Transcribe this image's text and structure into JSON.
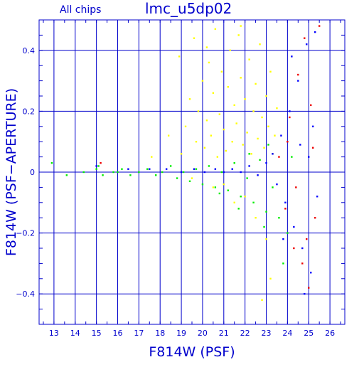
{
  "chart_data": {
    "type": "scatter",
    "title": "lmc_u5dp02",
    "subtitle": "All chips",
    "xlabel": "F814W (PSF)",
    "ylabel": "F814W (PSF−APERTURE)",
    "xlim": [
      12.3,
      26.7
    ],
    "ylim": [
      -0.5,
      0.5
    ],
    "x_ticks": [
      13,
      14,
      15,
      16,
      17,
      18,
      19,
      20,
      21,
      22,
      23,
      24,
      25,
      26
    ],
    "y_ticks": [
      -0.4,
      -0.2,
      0,
      0.2,
      0.4
    ],
    "y_tick_labels": [
      "−0.4",
      "−0.2",
      "0",
      "0.2",
      "0.4"
    ],
    "grid": true,
    "colors": {
      "axis": "#0000cc",
      "text": "#0000cc",
      "background": "#ffffff"
    },
    "series": [
      {
        "color": "#ffff00",
        "description_points": [
          [
            17.6,
            0.05
          ],
          [
            18.4,
            0.12
          ],
          [
            18.9,
            0.38
          ],
          [
            19.0,
            0.06
          ],
          [
            19.2,
            0.15
          ],
          [
            19.4,
            0.24
          ],
          [
            19.6,
            0.44
          ],
          [
            19.7,
            0.1
          ],
          [
            19.8,
            0.2
          ],
          [
            20.0,
            0.3
          ],
          [
            20.1,
            0.08
          ],
          [
            20.2,
            0.17
          ],
          [
            20.3,
            0.36
          ],
          [
            20.4,
            0.12
          ],
          [
            20.5,
            0.26
          ],
          [
            20.6,
            0.47
          ],
          [
            20.7,
            0.05
          ],
          [
            20.8,
            0.19
          ],
          [
            20.9,
            0.33
          ],
          [
            21.0,
            0.14
          ],
          [
            21.1,
            0.07
          ],
          [
            21.2,
            0.28
          ],
          [
            21.3,
            0.4
          ],
          [
            21.4,
            0.1
          ],
          [
            21.5,
            0.22
          ],
          [
            21.6,
            0.16
          ],
          [
            21.7,
            0.45
          ],
          [
            21.8,
            0.31
          ],
          [
            21.9,
            0.09
          ],
          [
            22.0,
            0.24
          ],
          [
            22.1,
            0.13
          ],
          [
            22.2,
            0.37
          ],
          [
            22.3,
            0.06
          ],
          [
            22.4,
            0.2
          ],
          [
            22.5,
            0.29
          ],
          [
            22.6,
            0.11
          ],
          [
            22.7,
            0.42
          ],
          [
            22.8,
            0.18
          ],
          [
            22.9,
            0.08
          ],
          [
            23.0,
            0.25
          ],
          [
            23.1,
            0.15
          ],
          [
            23.2,
            0.33
          ],
          [
            23.3,
            0.06
          ],
          [
            23.4,
            0.12
          ],
          [
            23.5,
            0.21
          ],
          [
            20.5,
            -0.05
          ],
          [
            21.5,
            -0.1
          ],
          [
            22.5,
            -0.15
          ],
          [
            23.0,
            -0.22
          ],
          [
            22.0,
            -0.08
          ],
          [
            23.2,
            -0.35
          ],
          [
            22.8,
            -0.42
          ],
          [
            21.0,
            -0.04
          ],
          [
            19.5,
            -0.02
          ],
          [
            20.2,
            0.41
          ],
          [
            21.8,
            0.48
          ]
        ]
      },
      {
        "color": "#00ee00",
        "description_points": [
          [
            12.9,
            0.03
          ],
          [
            13.6,
            -0.01
          ],
          [
            14.4,
            0.0
          ],
          [
            15.0,
            0.01
          ],
          [
            15.3,
            -0.01
          ],
          [
            15.8,
            0.0
          ],
          [
            16.2,
            0.01
          ],
          [
            16.6,
            -0.01
          ],
          [
            17.0,
            0.0
          ],
          [
            17.4,
            0.01
          ],
          [
            17.8,
            -0.01
          ],
          [
            18.1,
            0.0
          ],
          [
            18.5,
            0.02
          ],
          [
            18.8,
            -0.02
          ],
          [
            19.1,
            0.0
          ],
          [
            19.4,
            -0.03
          ],
          [
            19.7,
            0.01
          ],
          [
            20.0,
            -0.04
          ],
          [
            20.3,
            0.02
          ],
          [
            20.6,
            -0.05
          ],
          [
            20.9,
            0.0
          ],
          [
            21.2,
            -0.06
          ],
          [
            21.5,
            0.03
          ],
          [
            21.8,
            -0.08
          ],
          [
            22.1,
            -0.02
          ],
          [
            22.4,
            -0.1
          ],
          [
            22.7,
            0.04
          ],
          [
            23.0,
            -0.13
          ],
          [
            23.3,
            -0.05
          ],
          [
            23.6,
            -0.15
          ],
          [
            24.0,
            -0.2
          ],
          [
            24.2,
            0.05
          ],
          [
            23.8,
            -0.3
          ],
          [
            22.9,
            -0.18
          ],
          [
            21.7,
            -0.12
          ],
          [
            20.8,
            -0.07
          ],
          [
            22.2,
            0.06
          ],
          [
            23.1,
            0.09
          ],
          [
            15.1,
            0.02
          ],
          [
            16.0,
            0.0
          ]
        ]
      },
      {
        "color": "#0000ff",
        "description_points": [
          [
            15.0,
            0.02
          ],
          [
            16.5,
            0.01
          ],
          [
            17.5,
            0.01
          ],
          [
            18.3,
            0.01
          ],
          [
            19.0,
            0.0
          ],
          [
            19.6,
            0.01
          ],
          [
            20.1,
            0.0
          ],
          [
            20.6,
            0.01
          ],
          [
            21.0,
            0.0
          ],
          [
            21.4,
            0.01
          ],
          [
            21.8,
            0.0
          ],
          [
            22.2,
            0.02
          ],
          [
            22.6,
            -0.01
          ],
          [
            23.0,
            0.03
          ],
          [
            23.3,
            0.06
          ],
          [
            23.5,
            -0.04
          ],
          [
            23.7,
            0.12
          ],
          [
            23.9,
            -0.1
          ],
          [
            24.1,
            0.2
          ],
          [
            24.3,
            -0.18
          ],
          [
            24.5,
            0.3
          ],
          [
            24.7,
            -0.25
          ],
          [
            24.9,
            0.42
          ],
          [
            25.1,
            -0.33
          ],
          [
            25.2,
            0.15
          ],
          [
            25.4,
            -0.08
          ],
          [
            25.0,
            0.05
          ],
          [
            24.8,
            -0.4
          ],
          [
            24.2,
            0.38
          ],
          [
            25.3,
            0.46
          ],
          [
            24.6,
            0.09
          ],
          [
            23.8,
            -0.22
          ]
        ]
      },
      {
        "color": "#ee0000",
        "description_points": [
          [
            15.2,
            0.03
          ],
          [
            23.6,
            0.05
          ],
          [
            23.9,
            -0.12
          ],
          [
            24.1,
            0.18
          ],
          [
            24.3,
            -0.25
          ],
          [
            24.5,
            0.32
          ],
          [
            24.7,
            -0.3
          ],
          [
            24.8,
            0.44
          ],
          [
            25.0,
            -0.38
          ],
          [
            25.1,
            0.22
          ],
          [
            25.3,
            -0.15
          ],
          [
            25.5,
            0.48
          ],
          [
            25.2,
            0.08
          ],
          [
            24.4,
            -0.05
          ],
          [
            24.0,
            0.1
          ],
          [
            24.9,
            -0.22
          ]
        ]
      }
    ]
  }
}
